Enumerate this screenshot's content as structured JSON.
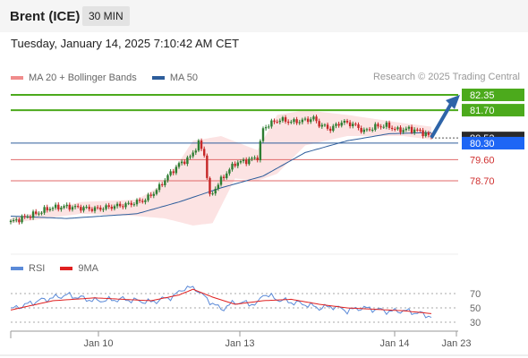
{
  "header": {
    "title": "Brent (ICE)",
    "interval": "30 MIN"
  },
  "timestamp": "Tuesday, January 14, 2025 7:10:42 AM CET",
  "legend": [
    {
      "label": "MA 20 + Bollinger Bands",
      "color": "#f08c8c"
    },
    {
      "label": "MA 50",
      "color": "#2d5d9b"
    }
  ],
  "source": "Research © 2025 Trading Central",
  "rsi_legend": [
    {
      "label": "RSI",
      "color": "#5b8ad8"
    },
    {
      "label": "9MA",
      "color": "#e02020"
    }
  ],
  "colors": {
    "resistance": "#4caa1c",
    "support": "#e06a6a",
    "pivot": "#2d5d9b",
    "current": "#1e66f5",
    "arrow": "#2e64a8"
  },
  "chart_data": [
    {
      "type": "candlestick",
      "title": "",
      "x_ticks": [
        "Jan 10",
        "Jan 13",
        "Jan 14",
        "Jan 23"
      ],
      "ylim": [
        76.7,
        83.5
      ],
      "grid": false,
      "legend_position": "top-left",
      "levels": [
        {
          "value": 82.35,
          "label": "82.35",
          "kind": "resistance"
        },
        {
          "value": 81.7,
          "label": "81.70",
          "kind": "resistance"
        },
        {
          "value": 80.3,
          "label": "80.30",
          "kind": "pivot"
        },
        {
          "value": 79.6,
          "label": "79.60",
          "kind": "support"
        },
        {
          "value": 78.7,
          "label": "78.70",
          "kind": "support"
        }
      ],
      "current_price_label": "80.52",
      "price_anchors": [
        [
          0,
          76.95
        ],
        [
          5,
          77.15
        ],
        [
          10,
          77.35
        ],
        [
          14,
          77.55
        ],
        [
          20,
          77.6
        ],
        [
          25,
          77.55
        ],
        [
          30,
          77.5
        ],
        [
          36,
          77.6
        ],
        [
          42,
          77.7
        ],
        [
          48,
          77.9
        ],
        [
          52,
          78.3
        ],
        [
          56,
          78.9
        ],
        [
          60,
          79.4
        ],
        [
          64,
          79.7
        ],
        [
          67,
          80.3
        ],
        [
          69,
          79.8
        ],
        [
          71,
          78.0
        ],
        [
          73,
          78.4
        ],
        [
          76,
          78.9
        ],
        [
          80,
          79.45
        ],
        [
          84,
          79.55
        ],
        [
          88,
          79.7
        ],
        [
          90,
          80.9
        ],
        [
          92,
          81.1
        ],
        [
          96,
          81.3
        ],
        [
          100,
          81.2
        ],
        [
          104,
          81.25
        ],
        [
          108,
          81.35
        ],
        [
          110,
          81.1
        ],
        [
          114,
          80.9
        ],
        [
          118,
          81.2
        ],
        [
          122,
          81.1
        ],
        [
          126,
          80.8
        ],
        [
          130,
          81.0
        ],
        [
          134,
          81.05
        ],
        [
          138,
          80.85
        ],
        [
          142,
          80.9
        ],
        [
          146,
          80.8
        ],
        [
          150,
          80.55
        ]
      ],
      "ma50_anchors": [
        [
          0,
          77.2
        ],
        [
          20,
          77.1
        ],
        [
          45,
          77.3
        ],
        [
          60,
          77.8
        ],
        [
          75,
          78.4
        ],
        [
          90,
          78.9
        ],
        [
          105,
          79.9
        ],
        [
          120,
          80.4
        ],
        [
          135,
          80.7
        ],
        [
          150,
          80.75
        ]
      ],
      "bb_upper_anchors": [
        [
          0,
          77.1
        ],
        [
          25,
          77.8
        ],
        [
          45,
          77.9
        ],
        [
          55,
          78.6
        ],
        [
          65,
          80.4
        ],
        [
          75,
          80.6
        ],
        [
          88,
          80.0
        ],
        [
          95,
          81.5
        ],
        [
          105,
          81.7
        ],
        [
          120,
          81.5
        ],
        [
          140,
          81.15
        ],
        [
          150,
          81.0
        ]
      ],
      "bb_lower_anchors": [
        [
          0,
          76.9
        ],
        [
          25,
          77.3
        ],
        [
          45,
          77.2
        ],
        [
          55,
          77.1
        ],
        [
          65,
          76.8
        ],
        [
          72,
          76.9
        ],
        [
          80,
          78.8
        ],
        [
          88,
          78.7
        ],
        [
          95,
          79.0
        ],
        [
          105,
          80.2
        ],
        [
          120,
          80.6
        ],
        [
          140,
          80.6
        ],
        [
          150,
          80.45
        ]
      ],
      "forecast_arrow": {
        "from": 80.3,
        "to": 82.35
      }
    },
    {
      "type": "line",
      "title": "RSI",
      "y_ticks": [
        70,
        50,
        30
      ],
      "ylim": [
        20,
        85
      ],
      "rsi_anchors": [
        [
          0,
          48
        ],
        [
          10,
          60
        ],
        [
          20,
          68
        ],
        [
          30,
          60
        ],
        [
          40,
          62
        ],
        [
          50,
          58
        ],
        [
          58,
          66
        ],
        [
          62,
          78
        ],
        [
          66,
          77
        ],
        [
          70,
          62
        ],
        [
          75,
          48
        ],
        [
          80,
          58
        ],
        [
          88,
          55
        ],
        [
          90,
          70
        ],
        [
          95,
          62
        ],
        [
          100,
          58
        ],
        [
          105,
          55
        ],
        [
          110,
          50
        ],
        [
          115,
          52
        ],
        [
          120,
          46
        ],
        [
          125,
          50
        ],
        [
          130,
          48
        ],
        [
          135,
          45
        ],
        [
          140,
          46
        ],
        [
          145,
          43
        ],
        [
          150,
          38
        ]
      ],
      "ma9_anchors": [
        [
          0,
          47
        ],
        [
          15,
          60
        ],
        [
          30,
          64
        ],
        [
          50,
          60
        ],
        [
          60,
          68
        ],
        [
          65,
          76
        ],
        [
          72,
          65
        ],
        [
          80,
          55
        ],
        [
          90,
          60
        ],
        [
          100,
          62
        ],
        [
          110,
          55
        ],
        [
          120,
          50
        ],
        [
          130,
          48
        ],
        [
          140,
          46
        ],
        [
          150,
          42
        ]
      ]
    }
  ]
}
